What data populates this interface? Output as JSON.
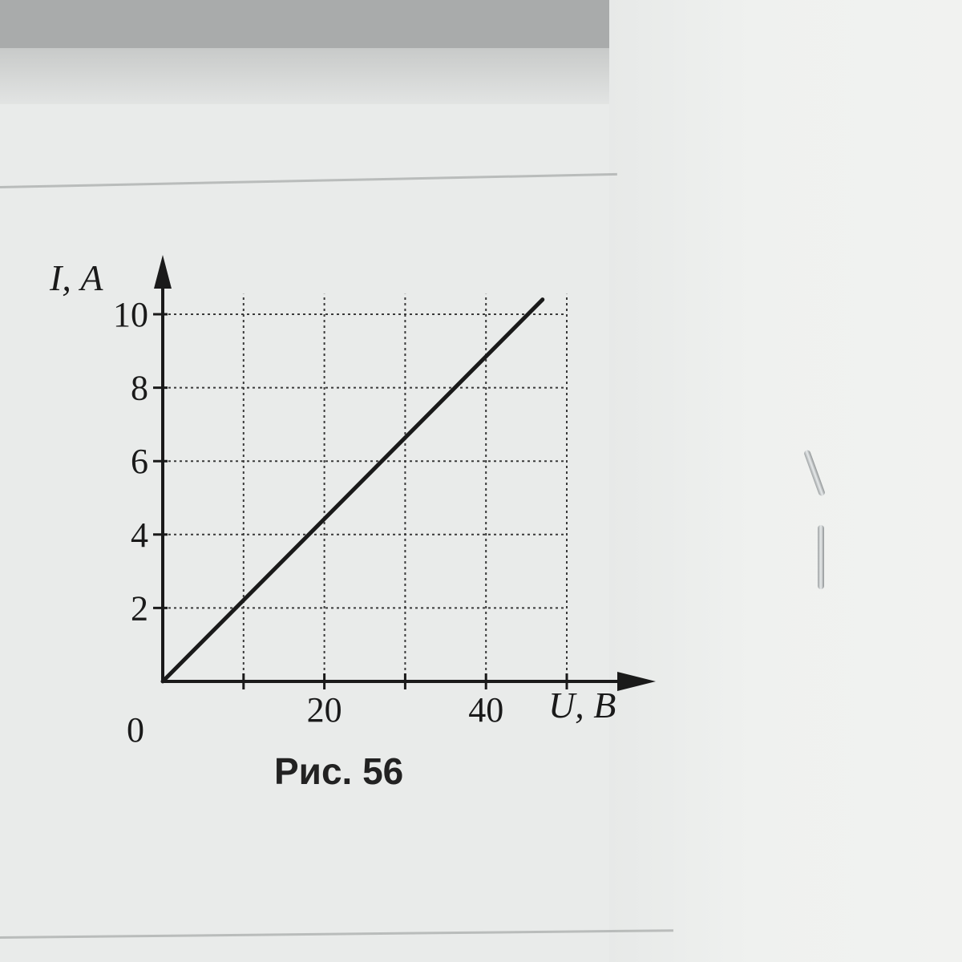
{
  "figure": {
    "caption": "Рис. 56"
  },
  "chart_data": {
    "type": "line",
    "title": "",
    "xlabel": "U, В",
    "ylabel": "I, А",
    "origin_label": "0",
    "xlim": [
      0,
      50
    ],
    "ylim": [
      0,
      11
    ],
    "x_ticks": [
      10,
      20,
      30,
      40,
      50
    ],
    "x_tick_labels": [
      {
        "value": 20,
        "label": "20"
      },
      {
        "value": 40,
        "label": "40"
      }
    ],
    "y_ticks": [
      2,
      4,
      6,
      8,
      10
    ],
    "y_tick_labels": [
      {
        "value": 2,
        "label": "2"
      },
      {
        "value": 4,
        "label": "4"
      },
      {
        "value": 6,
        "label": "6"
      },
      {
        "value": 8,
        "label": "8"
      },
      {
        "value": 10,
        "label": "10"
      }
    ],
    "grid": true,
    "series": [
      {
        "x": [
          0,
          47
        ],
        "y": [
          0,
          10.4
        ]
      }
    ]
  },
  "colors": {
    "ink": "#1a1a1a",
    "grid": "#3a3a3a",
    "paper": "#e9ebea"
  }
}
